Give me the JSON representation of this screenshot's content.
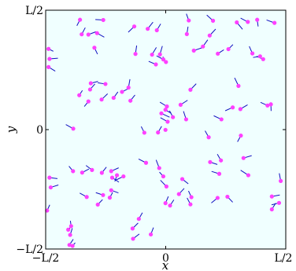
{
  "chart_data": {
    "type": "scatter",
    "title": "",
    "xlabel": "x",
    "ylabel": "y",
    "xlim": [
      -0.5,
      0.5
    ],
    "ylim": [
      -0.5,
      0.5
    ],
    "grid": false,
    "background": "#f0ffff",
    "marker_color": "#ff40ff",
    "arrow_color": "#1010c0",
    "x_ticks": [
      {
        "value": -0.5,
        "label": "−L/2"
      },
      {
        "value": 0,
        "label": "0"
      },
      {
        "value": 0.5,
        "label": "L/2"
      }
    ],
    "y_ticks": [
      {
        "value": -0.5,
        "label": "−L/2"
      },
      {
        "value": 0,
        "label": "0"
      },
      {
        "value": 0.5,
        "label": "L/2"
      }
    ],
    "points": [
      {
        "x": -0.357,
        "y": 0.46,
        "dx": -0.013,
        "dy": -0.025
      },
      {
        "x": -0.26,
        "y": 0.459,
        "dx": -0.033,
        "dy": 0.002
      },
      {
        "x": -0.35,
        "y": 0.399,
        "dx": 0.015,
        "dy": 0.028
      },
      {
        "x": -0.322,
        "y": 0.398,
        "dx": 0.032,
        "dy": 0.012
      },
      {
        "x": -0.286,
        "y": 0.404,
        "dx": 0.03,
        "dy": -0.017
      },
      {
        "x": -0.297,
        "y": 0.343,
        "dx": 0.013,
        "dy": -0.027
      },
      {
        "x": -0.131,
        "y": 0.432,
        "dx": -0.025,
        "dy": -0.024
      },
      {
        "x": -0.075,
        "y": 0.422,
        "dx": 0.022,
        "dy": 0.028
      },
      {
        "x": -0.037,
        "y": 0.416,
        "dx": 0.016,
        "dy": 0.027
      },
      {
        "x": -0.126,
        "y": 0.317,
        "dx": 0.005,
        "dy": 0.035
      },
      {
        "x": -0.057,
        "y": 0.314,
        "dx": 0.018,
        "dy": 0.03
      },
      {
        "x": -0.024,
        "y": 0.315,
        "dx": 0.01,
        "dy": 0.035
      },
      {
        "x": 0.001,
        "y": 0.283,
        "dx": -0.013,
        "dy": 0.022
      },
      {
        "x": -0.01,
        "y": 0.294,
        "dx": -0.028,
        "dy": 0.015
      },
      {
        "x": -0.041,
        "y": 0.273,
        "dx": -0.03,
        "dy": 0.013
      },
      {
        "x": 0.096,
        "y": 0.457,
        "dx": -0.01,
        "dy": 0.028
      },
      {
        "x": 0.197,
        "y": 0.456,
        "dx": -0.026,
        "dy": 0.024
      },
      {
        "x": 0.088,
        "y": 0.4,
        "dx": 0.005,
        "dy": 0.031
      },
      {
        "x": 0.183,
        "y": 0.394,
        "dx": 0.025,
        "dy": 0.027
      },
      {
        "x": 0.155,
        "y": 0.348,
        "dx": 0.02,
        "dy": 0.028
      },
      {
        "x": 0.217,
        "y": 0.318,
        "dx": 0.025,
        "dy": 0.016
      },
      {
        "x": 0.261,
        "y": 0.337,
        "dx": 0.019,
        "dy": 0.019
      },
      {
        "x": 0.117,
        "y": 0.331,
        "dx": 0.035,
        "dy": 0.012
      },
      {
        "x": 0.296,
        "y": 0.449,
        "dx": 0.024,
        "dy": -0.029
      },
      {
        "x": 0.381,
        "y": 0.46,
        "dx": 0.004,
        "dy": -0.028
      },
      {
        "x": 0.342,
        "y": 0.451,
        "dx": -0.03,
        "dy": 0.016
      },
      {
        "x": 0.453,
        "y": 0.447,
        "dx": -0.033,
        "dy": 0.012
      },
      {
        "x": 0.361,
        "y": 0.319,
        "dx": -0.013,
        "dy": 0.03
      },
      {
        "x": 0.393,
        "y": 0.307,
        "dx": -0.029,
        "dy": -0.005
      },
      {
        "x": 0.406,
        "y": 0.295,
        "dx": -0.028,
        "dy": 0.012
      },
      {
        "x": -0.484,
        "y": 0.296,
        "dx": 0.035,
        "dy": 0.003
      },
      {
        "x": -0.488,
        "y": 0.262,
        "dx": 0.028,
        "dy": -0.017
      },
      {
        "x": -0.488,
        "y": 0.338,
        "dx": 0.02,
        "dy": -0.01
      },
      {
        "x": -0.312,
        "y": 0.194,
        "dx": 0.03,
        "dy": 0.008
      },
      {
        "x": -0.251,
        "y": 0.191,
        "dx": -0.032,
        "dy": 0.005
      },
      {
        "x": -0.36,
        "y": 0.144,
        "dx": 0.013,
        "dy": 0.02
      },
      {
        "x": -0.322,
        "y": 0.118,
        "dx": -0.017,
        "dy": -0.021
      },
      {
        "x": -0.267,
        "y": 0.126,
        "dx": 0.025,
        "dy": 0.024
      },
      {
        "x": -0.217,
        "y": 0.133,
        "dx": 0.018,
        "dy": 0.025
      },
      {
        "x": -0.182,
        "y": 0.158,
        "dx": 0.029,
        "dy": 0.015
      },
      {
        "x": -0.155,
        "y": 0.176,
        "dx": 0.006,
        "dy": 0.035
      },
      {
        "x": -0.147,
        "y": 0.121,
        "dx": 0.019,
        "dy": 0.024
      },
      {
        "x": -0.315,
        "y": 0.168,
        "dx": 0.02,
        "dy": 0.023
      },
      {
        "x": -0.385,
        "y": 0.004,
        "dx": -0.031,
        "dy": 0.017
      },
      {
        "x": -0.018,
        "y": 0.068,
        "dx": 0.034,
        "dy": -0.016
      },
      {
        "x": 0.03,
        "y": 0.052,
        "dx": -0.014,
        "dy": 0.027
      },
      {
        "x": 0.008,
        "y": 0.033,
        "dx": -0.03,
        "dy": 0.017
      },
      {
        "x": 0.085,
        "y": 0.043,
        "dx": -0.011,
        "dy": 0.034
      },
      {
        "x": 0.103,
        "y": 0.167,
        "dx": 0.024,
        "dy": 0.025
      },
      {
        "x": 0.062,
        "y": 0.104,
        "dx": 0.029,
        "dy": 0.019
      },
      {
        "x": 0.005,
        "y": 0.097,
        "dx": -0.029,
        "dy": 0.018
      },
      {
        "x": -0.001,
        "y": 0.083,
        "dx": 0.024,
        "dy": -0.015
      },
      {
        "x": -0.001,
        "y": -0.001,
        "dx": 0.002,
        "dy": -0.007
      },
      {
        "x": 0.311,
        "y": 0.086,
        "dx": 0.03,
        "dy": 0.018
      },
      {
        "x": 0.279,
        "y": 0.093,
        "dx": -0.031,
        "dy": -0.014
      },
      {
        "x": 0.232,
        "y": 0.043,
        "dx": -0.032,
        "dy": 0.015
      },
      {
        "x": 0.303,
        "y": 0.183,
        "dx": -0.016,
        "dy": 0.034
      },
      {
        "x": 0.438,
        "y": 0.106,
        "dx": 0.001,
        "dy": -0.028
      },
      {
        "x": 0.424,
        "y": 0.101,
        "dx": -0.029,
        "dy": 0.013
      },
      {
        "x": -0.089,
        "y": -0.013,
        "dx": -0.013,
        "dy": 0.026
      },
      {
        "x": -0.032,
        "y": -0.012,
        "dx": 0.015,
        "dy": 0.026
      },
      {
        "x": 0.179,
        "y": -0.032,
        "dx": -0.015,
        "dy": 0.027
      },
      {
        "x": 0.313,
        "y": -0.025,
        "dx": -0.014,
        "dy": -0.026
      },
      {
        "x": -0.484,
        "y": -0.201,
        "dx": 0.033,
        "dy": -0.004
      },
      {
        "x": -0.479,
        "y": -0.242,
        "dx": 0.032,
        "dy": 0.01
      },
      {
        "x": -0.494,
        "y": -0.339,
        "dx": 0.011,
        "dy": 0.024
      },
      {
        "x": -0.386,
        "y": -0.174,
        "dx": -0.017,
        "dy": 0.021
      },
      {
        "x": -0.348,
        "y": -0.18,
        "dx": 0.028,
        "dy": 0.015
      },
      {
        "x": -0.307,
        "y": -0.169,
        "dx": -0.025,
        "dy": 0.019
      },
      {
        "x": -0.227,
        "y": -0.174,
        "dx": 0.031,
        "dy": 0.014
      },
      {
        "x": -0.203,
        "y": -0.191,
        "dx": -0.009,
        "dy": -0.026
      },
      {
        "x": -0.176,
        "y": -0.196,
        "dx": -0.035,
        "dy": -0.017
      },
      {
        "x": -0.227,
        "y": -0.254,
        "dx": 0.03,
        "dy": -0.011
      },
      {
        "x": -0.329,
        "y": -0.282,
        "dx": -0.029,
        "dy": 0.016
      },
      {
        "x": -0.261,
        "y": -0.274,
        "dx": -0.03,
        "dy": 0.01
      },
      {
        "x": -0.233,
        "y": -0.285,
        "dx": 0.012,
        "dy": 0.022
      },
      {
        "x": -0.283,
        "y": -0.314,
        "dx": 0.02,
        "dy": 0.021
      },
      {
        "x": -0.082,
        "y": -0.139,
        "dx": -0.031,
        "dy": 0.016
      },
      {
        "x": -0.027,
        "y": -0.161,
        "dx": -0.013,
        "dy": 0.034
      },
      {
        "x": -0.01,
        "y": -0.196,
        "dx": -0.016,
        "dy": 0.018
      },
      {
        "x": -0.223,
        "y": -0.201,
        "dx": 0.028,
        "dy": -0.019
      },
      {
        "x": -0.266,
        "y": -0.181,
        "dx": 0.019,
        "dy": 0.024
      },
      {
        "x": 0.003,
        "y": -0.238,
        "dx": -0.025,
        "dy": 0.026
      },
      {
        "x": 0.069,
        "y": -0.207,
        "dx": 0.025,
        "dy": -0.02
      },
      {
        "x": 0.185,
        "y": -0.136,
        "dx": 0.03,
        "dy": -0.01
      },
      {
        "x": 0.223,
        "y": -0.185,
        "dx": -0.032,
        "dy": 0.01
      },
      {
        "x": 0.23,
        "y": -0.129,
        "dx": -0.015,
        "dy": 0.026
      },
      {
        "x": 0.324,
        "y": -0.119,
        "dx": 0.034,
        "dy": 0.01
      },
      {
        "x": 0.344,
        "y": -0.191,
        "dx": -0.032,
        "dy": 0.021
      },
      {
        "x": 0.107,
        "y": -0.283,
        "dx": -0.012,
        "dy": 0.026
      },
      {
        "x": 0.018,
        "y": -0.318,
        "dx": 0.016,
        "dy": 0.024
      },
      {
        "x": 0.055,
        "y": -0.27,
        "dx": 0.022,
        "dy": 0.024
      },
      {
        "x": -0.001,
        "y": -0.308,
        "dx": 0.012,
        "dy": 0.028
      },
      {
        "x": 0.103,
        "y": -0.313,
        "dx": -0.014,
        "dy": 0.027
      },
      {
        "x": 0.216,
        "y": -0.286,
        "dx": -0.026,
        "dy": -0.021
      },
      {
        "x": 0.257,
        "y": -0.281,
        "dx": 0.022,
        "dy": -0.023
      },
      {
        "x": 0.442,
        "y": -0.28,
        "dx": 0.033,
        "dy": 0.006
      },
      {
        "x": 0.442,
        "y": -0.334,
        "dx": 0.016,
        "dy": 0.026
      },
      {
        "x": 0.479,
        "y": -0.215,
        "dx": -0.006,
        "dy": 0.032
      },
      {
        "x": 0.472,
        "y": -0.307,
        "dx": -0.031,
        "dy": -0.008
      },
      {
        "x": -0.138,
        "y": -0.414,
        "dx": 0.023,
        "dy": 0.023
      },
      {
        "x": -0.112,
        "y": -0.374,
        "dx": 0.015,
        "dy": 0.026
      },
      {
        "x": -0.136,
        "y": -0.457,
        "dx": 0.026,
        "dy": 0.02
      },
      {
        "x": -0.062,
        "y": -0.439,
        "dx": 0.011,
        "dy": 0.029
      },
      {
        "x": -0.394,
        "y": -0.404,
        "dx": -0.003,
        "dy": 0.022
      },
      {
        "x": -0.406,
        "y": -0.419,
        "dx": 0.017,
        "dy": 0.018
      },
      {
        "x": -0.398,
        "y": -0.441,
        "dx": 0.009,
        "dy": 0.028
      },
      {
        "x": -0.401,
        "y": -0.483,
        "dx": 0.016,
        "dy": 0.024
      },
      {
        "x": -0.388,
        "y": -0.487,
        "dx": 0.011,
        "dy": 0.013
      }
    ]
  }
}
